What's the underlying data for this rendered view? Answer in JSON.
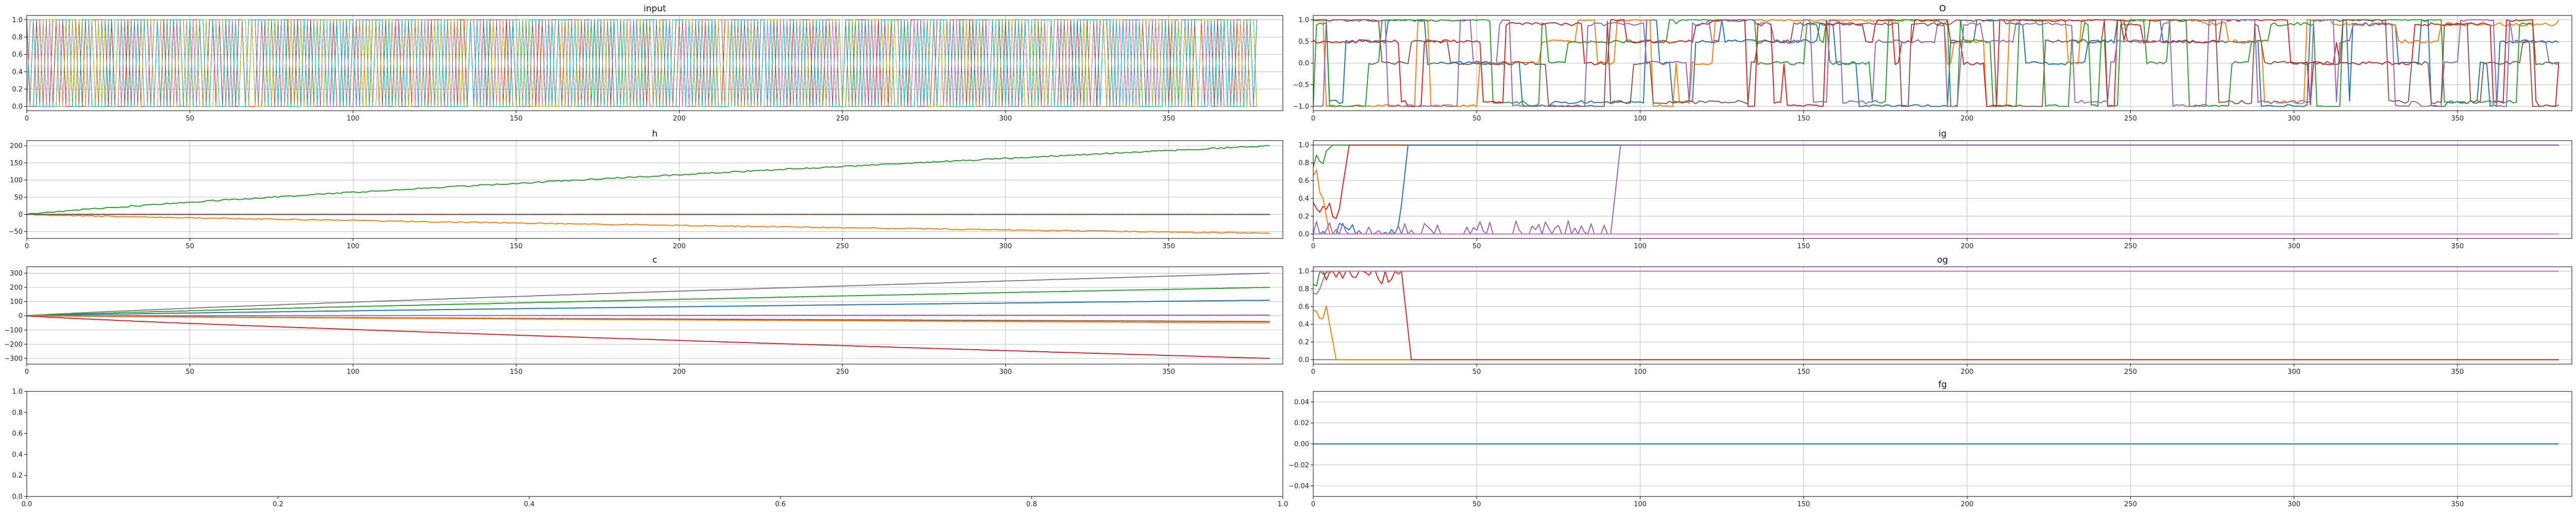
{
  "chart_data": [
    {
      "type": "line",
      "title": "input",
      "xlabel": "",
      "ylabel": "",
      "xlim": [
        0,
        385
      ],
      "ylim": [
        -0.05,
        1.05
      ],
      "xticks": [
        0,
        50,
        100,
        150,
        200,
        250,
        300,
        350
      ],
      "yticks": [
        0.0,
        0.2,
        0.4,
        0.6,
        0.8,
        1.0
      ],
      "ytick_labels": [
        "0.0",
        "0.2",
        "0.4",
        "0.6",
        "0.8",
        "1.0"
      ],
      "grid": true,
      "pattern": "binary",
      "length": 378,
      "series": [
        {
          "color": "#1f77b4",
          "seed": 11
        },
        {
          "color": "#ff7f0e",
          "seed": 12
        },
        {
          "color": "#2ca02c",
          "seed": 13
        },
        {
          "color": "#d62728",
          "seed": 14
        },
        {
          "color": "#9467bd",
          "seed": 15
        },
        {
          "color": "#8c564b",
          "seed": 16
        },
        {
          "color": "#e377c2",
          "seed": 17
        },
        {
          "color": "#7f7f7f",
          "seed": 18
        },
        {
          "color": "#bcbd22",
          "seed": 19
        },
        {
          "color": "#17becf",
          "seed": 20
        }
      ]
    },
    {
      "type": "line",
      "title": "O",
      "xlabel": "",
      "ylabel": "",
      "xlim": [
        0,
        385
      ],
      "ylim": [
        -1.1,
        1.1
      ],
      "xticks": [
        0,
        50,
        100,
        150,
        200,
        250,
        300,
        350
      ],
      "yticks": [
        -1.0,
        -0.5,
        0.0,
        0.5,
        1.0
      ],
      "ytick_labels": [
        "−1.0",
        "−0.5",
        "0.0",
        "0.5",
        "1.0"
      ],
      "grid": true,
      "pattern": "saturated",
      "length": 382,
      "series": [
        {
          "color": "#1f77b4",
          "seed": 31
        },
        {
          "color": "#ff7f0e",
          "seed": 32
        },
        {
          "color": "#2ca02c",
          "seed": 33
        },
        {
          "color": "#d62728",
          "seed": 34
        },
        {
          "color": "#9467bd",
          "seed": 35
        },
        {
          "color": "#8c564b",
          "seed": 36
        }
      ]
    },
    {
      "type": "line",
      "title": "h",
      "xlabel": "",
      "ylabel": "",
      "xlim": [
        0,
        385
      ],
      "ylim": [
        -70,
        215
      ],
      "xticks": [
        0,
        50,
        100,
        150,
        200,
        250,
        300,
        350
      ],
      "yticks": [
        -50,
        0,
        50,
        100,
        150,
        200
      ],
      "ytick_labels": [
        "−50",
        "0",
        "50",
        "100",
        "150",
        "200"
      ],
      "grid": true,
      "pattern": "trend",
      "length": 382,
      "series": [
        {
          "color": "#2ca02c",
          "end": 200,
          "noise": 2.0,
          "seed": 41
        },
        {
          "color": "#ff7f0e",
          "end": -55,
          "noise": 1.5,
          "seed": 42
        },
        {
          "color": "#1f77b4",
          "end": 0,
          "noise": 0.3,
          "seed": 43
        },
        {
          "color": "#9467bd",
          "end": 0,
          "noise": 0.3,
          "seed": 44
        },
        {
          "color": "#d62728",
          "end": 0,
          "noise": 0.3,
          "seed": 45
        },
        {
          "color": "#8c564b",
          "end": 0,
          "noise": 0.3,
          "seed": 46
        }
      ]
    },
    {
      "type": "line",
      "title": "ig",
      "xlabel": "",
      "ylabel": "",
      "xlim": [
        0,
        385
      ],
      "ylim": [
        -0.05,
        1.05
      ],
      "xticks": [
        0,
        50,
        100,
        150,
        200,
        250,
        300,
        350
      ],
      "yticks": [
        0.0,
        0.2,
        0.4,
        0.6,
        0.8,
        1.0
      ],
      "ytick_labels": [
        "0.0",
        "0.2",
        "0.4",
        "0.6",
        "0.8",
        "1.0"
      ],
      "grid": true,
      "pattern": "gate",
      "length": 382,
      "series": [
        {
          "color": "#7f7f7f",
          "start": 1.0,
          "end": 1.0,
          "switch": 0,
          "seed": 51
        },
        {
          "color": "#2ca02c",
          "start": 0.9,
          "end": 1.0,
          "switch": 4,
          "seed": 52
        },
        {
          "color": "#d62728",
          "start": 0.3,
          "end": 1.0,
          "switch": 9,
          "seed": 53
        },
        {
          "color": "#1f77b4",
          "start": 0.0,
          "end": 1.0,
          "switch": 27,
          "seed": 54
        },
        {
          "color": "#ff7f0e",
          "start": 0.6,
          "end": 0.0,
          "switch": 3,
          "seed": 55
        },
        {
          "color": "#9467bd",
          "start": 0.0,
          "end": 1.0,
          "switch": 92,
          "seed": 56
        },
        {
          "color": "#e377c2",
          "start": 0.0,
          "end": 0.0,
          "switch": 0,
          "seed": 57
        }
      ]
    },
    {
      "type": "line",
      "title": "c",
      "xlabel": "",
      "ylabel": "",
      "xlim": [
        0,
        385
      ],
      "ylim": [
        -340,
        345
      ],
      "xticks": [
        0,
        50,
        100,
        150,
        200,
        250,
        300,
        350
      ],
      "yticks": [
        -300,
        -200,
        -100,
        0,
        100,
        200,
        300
      ],
      "ytick_labels": [
        "−300",
        "−200",
        "−100",
        "0",
        "100",
        "200",
        "300"
      ],
      "grid": true,
      "pattern": "trend",
      "length": 382,
      "series": [
        {
          "color": "#7f7f7f",
          "end": 300,
          "noise": 0.6,
          "seed": 61
        },
        {
          "color": "#2ca02c",
          "end": 200,
          "noise": 0.8,
          "seed": 62
        },
        {
          "color": "#1f77b4",
          "end": 110,
          "noise": 0.5,
          "seed": 63
        },
        {
          "color": "#9467bd",
          "end": 5,
          "noise": 0.4,
          "seed": 64
        },
        {
          "color": "#8c564b",
          "end": -40,
          "noise": 0.5,
          "seed": 65
        },
        {
          "color": "#ff7f0e",
          "end": -50,
          "noise": 0.6,
          "seed": 66
        },
        {
          "color": "#d62728",
          "end": -300,
          "noise": 0.6,
          "seed": 67
        }
      ]
    },
    {
      "type": "line",
      "title": "og",
      "xlabel": "",
      "ylabel": "",
      "xlim": [
        0,
        385
      ],
      "ylim": [
        -0.05,
        1.05
      ],
      "xticks": [
        0,
        50,
        100,
        150,
        200,
        250,
        300,
        350
      ],
      "yticks": [
        0.0,
        0.2,
        0.4,
        0.6,
        0.8,
        1.0
      ],
      "ytick_labels": [
        "0.0",
        "0.2",
        "0.4",
        "0.6",
        "0.8",
        "1.0"
      ],
      "grid": true,
      "pattern": "gate",
      "length": 382,
      "series": [
        {
          "color": "#7f7f7f",
          "start": 0.0,
          "end": 0.0,
          "switch": 0,
          "seed": 71
        },
        {
          "color": "#2ca02c",
          "start": 0.95,
          "end": 1.0,
          "switch": 3,
          "seed": 72
        },
        {
          "color": "#ff7f0e",
          "start": 0.6,
          "end": 0.0,
          "switch": 5,
          "seed": 73
        },
        {
          "color": "#9467bd",
          "start": 0.7,
          "end": 1.0,
          "switch": 2,
          "seed": 74
        },
        {
          "color": "#d62728",
          "start": 1.0,
          "end": 0.0,
          "switch": 28,
          "seed": 75
        },
        {
          "color": "#e377c2",
          "start": 1.0,
          "end": 1.0,
          "switch": 0,
          "seed": 76
        }
      ]
    },
    {
      "type": "line",
      "title": "",
      "xlabel": "",
      "ylabel": "",
      "xlim": [
        0.0,
        1.0
      ],
      "ylim": [
        0.0,
        1.0
      ],
      "xticks": [
        0.0,
        0.2,
        0.4,
        0.6,
        0.8,
        1.0
      ],
      "xtick_labels": [
        "0.0",
        "0.2",
        "0.4",
        "0.6",
        "0.8",
        "1.0"
      ],
      "yticks": [
        0.0,
        0.2,
        0.4,
        0.6,
        0.8,
        1.0
      ],
      "ytick_labels": [
        "0.0",
        "0.2",
        "0.4",
        "0.6",
        "0.8",
        "1.0"
      ],
      "grid": false,
      "pattern": "none",
      "series": []
    },
    {
      "type": "line",
      "title": "fg",
      "xlabel": "",
      "ylabel": "",
      "xlim": [
        0,
        385
      ],
      "ylim": [
        -0.05,
        0.05
      ],
      "xticks": [
        0,
        50,
        100,
        150,
        200,
        250,
        300,
        350
      ],
      "yticks": [
        -0.04,
        -0.02,
        0.0,
        0.02,
        0.04
      ],
      "ytick_labels": [
        "−0.04",
        "−0.02",
        "0.00",
        "0.02",
        "0.04"
      ],
      "grid": true,
      "pattern": "constant",
      "length": 382,
      "series": [
        {
          "color": "#1f77b4",
          "value": 0.0
        }
      ]
    }
  ]
}
